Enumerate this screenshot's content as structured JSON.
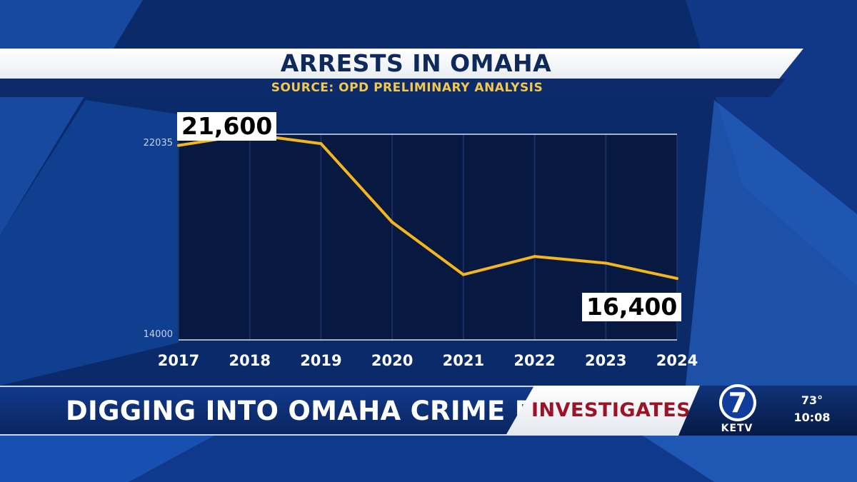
{
  "broadcast": {
    "headline": "DIGGING INTO OMAHA CRIME DATA",
    "segment": "INVESTIGATES",
    "station": "KETV",
    "channel_number": "7",
    "temperature": "73°",
    "time": "10:08"
  },
  "chart_data": {
    "type": "line",
    "title": "ARRESTS IN OMAHA",
    "subtitle": "SOURCE: OPD PRELIMINARY ANALYSIS",
    "categories": [
      "2017",
      "2018",
      "2019",
      "2020",
      "2021",
      "2022",
      "2023",
      "2024"
    ],
    "values": [
      21600,
      22035,
      21670,
      18600,
      16550,
      17260,
      17000,
      16400
    ],
    "y_tick_labels": [
      "22035",
      "14000"
    ],
    "ylim": [
      14000,
      22035
    ],
    "callouts": {
      "start": "21,600",
      "end": "16,400"
    },
    "grid": true,
    "line_color": "#f5b51c"
  }
}
